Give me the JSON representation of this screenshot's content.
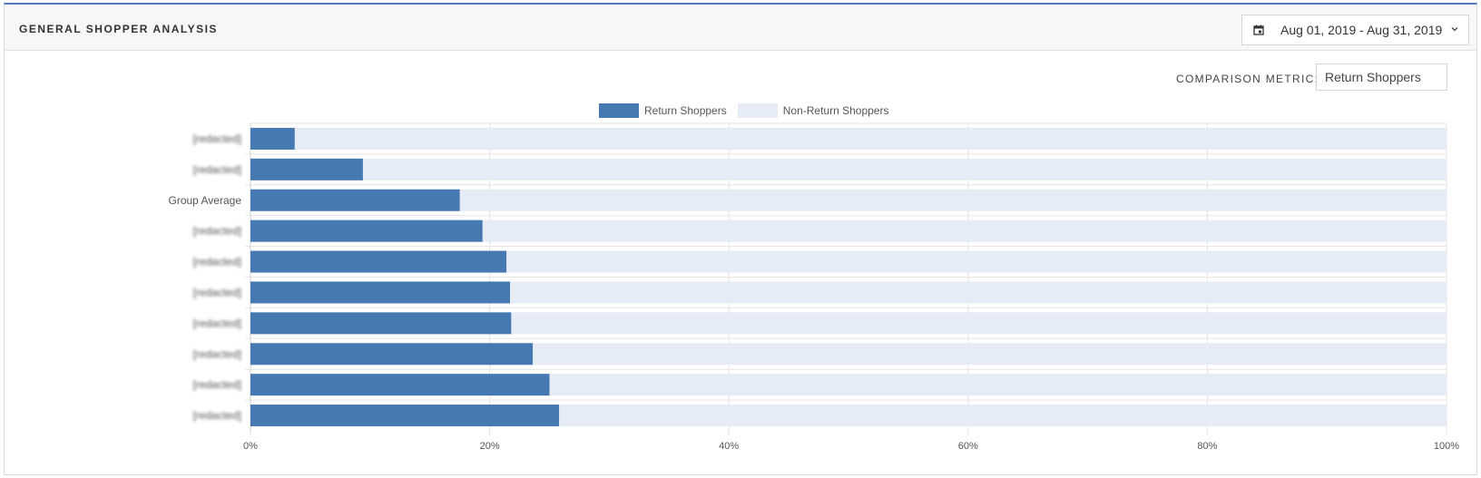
{
  "header": {
    "title": "GENERAL SHOPPER ANALYSIS",
    "date_range": "Aug 01, 2019 - Aug 31, 2019"
  },
  "controls": {
    "metric_label": "COMPARISON METRIC:",
    "metric_value": "Return Shoppers"
  },
  "chart_data": {
    "type": "bar",
    "orientation": "horizontal",
    "stacked": true,
    "categories": [
      "[redacted]",
      "[redacted]",
      "Group Average",
      "[redacted]",
      "[redacted]",
      "[redacted]",
      "[redacted]",
      "[redacted]",
      "[redacted]",
      "[redacted]"
    ],
    "series": [
      {
        "name": "Return Shoppers",
        "color": "#4679b1",
        "values": [
          3.7,
          9.4,
          17.5,
          19.4,
          21.4,
          21.7,
          21.8,
          23.6,
          25.0,
          25.8
        ]
      },
      {
        "name": "Non-Return Shoppers",
        "color": "#e5ecf5",
        "values": [
          96.3,
          90.6,
          82.5,
          80.6,
          78.6,
          78.3,
          78.2,
          76.4,
          75.0,
          74.2
        ]
      }
    ],
    "xlim": [
      0,
      100
    ],
    "x_ticks": [
      "0%",
      "20%",
      "40%",
      "60%",
      "80%",
      "100%"
    ],
    "grid": true,
    "legend_position": "top"
  }
}
